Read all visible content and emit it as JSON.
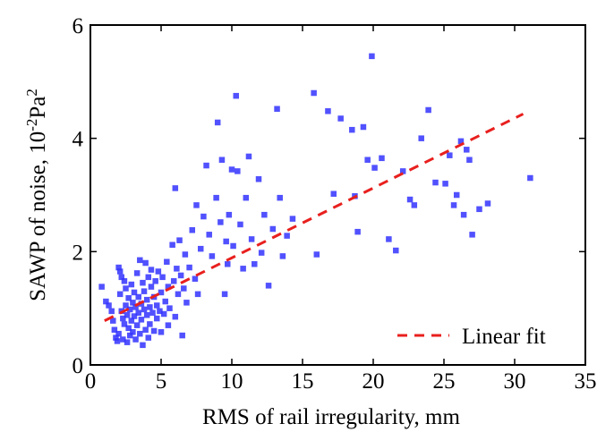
{
  "chart_data": {
    "type": "scatter",
    "xlabel": "RMS of rail irregularity, mm",
    "ylabel": {
      "main": "SAWP of noise, 10",
      "sup1": "-2",
      "mid": "Pa",
      "sup2": "2"
    },
    "xlim": [
      0,
      35
    ],
    "ylim": [
      0,
      6
    ],
    "xticks": [
      0,
      5,
      10,
      15,
      20,
      25,
      30,
      35
    ],
    "yticks": [
      0,
      2,
      4,
      6
    ],
    "xtick_labels": [
      "0",
      "5",
      "10",
      "15",
      "20",
      "25",
      "30",
      "35"
    ],
    "ytick_labels": [
      "0",
      "2",
      "4",
      "6"
    ],
    "legend_position": "bottom-right",
    "grid": false,
    "series": [
      {
        "kind": "scatter",
        "color": "#3333ff",
        "marker": "square",
        "points": [
          [
            0.8,
            1.38
          ],
          [
            1.1,
            1.12
          ],
          [
            1.3,
            1.05
          ],
          [
            1.5,
            0.95
          ],
          [
            1.6,
            0.78
          ],
          [
            1.7,
            0.62
          ],
          [
            1.8,
            0.48
          ],
          [
            1.9,
            0.42
          ],
          [
            2.0,
            0.55
          ],
          [
            2.0,
            1.72
          ],
          [
            2.1,
            1.65
          ],
          [
            2.1,
            1.25
          ],
          [
            2.2,
            1.55
          ],
          [
            2.2,
            0.95
          ],
          [
            2.3,
            0.82
          ],
          [
            2.3,
            0.45
          ],
          [
            2.4,
            1.48
          ],
          [
            2.4,
            0.72
          ],
          [
            2.5,
            1.35
          ],
          [
            2.5,
            1.05
          ],
          [
            2.6,
            0.88
          ],
          [
            2.6,
            0.4
          ],
          [
            2.7,
            1.18
          ],
          [
            2.7,
            0.65
          ],
          [
            2.8,
            0.98
          ],
          [
            2.8,
            0.52
          ],
          [
            2.9,
            1.42
          ],
          [
            2.9,
            0.78
          ],
          [
            3.0,
            0.58
          ],
          [
            3.0,
            1.1
          ],
          [
            3.1,
            1.28
          ],
          [
            3.1,
            0.86
          ],
          [
            3.2,
            1.02
          ],
          [
            3.2,
            0.45
          ],
          [
            3.3,
            1.62
          ],
          [
            3.3,
            0.7
          ],
          [
            3.4,
            0.92
          ],
          [
            3.4,
            1.2
          ],
          [
            3.5,
            1.85
          ],
          [
            3.5,
            0.55
          ],
          [
            3.6,
            1.08
          ],
          [
            3.6,
            0.8
          ],
          [
            3.7,
            1.45
          ],
          [
            3.7,
            0.35
          ],
          [
            3.8,
            0.98
          ],
          [
            3.8,
            1.3
          ],
          [
            3.9,
            1.8
          ],
          [
            3.9,
            0.62
          ],
          [
            4.0,
            1.15
          ],
          [
            4.0,
            0.88
          ],
          [
            4.1,
            1.55
          ],
          [
            4.1,
            0.48
          ],
          [
            4.2,
            1.02
          ],
          [
            4.2,
            0.72
          ],
          [
            4.3,
            1.38
          ],
          [
            4.3,
            1.68
          ],
          [
            4.4,
            0.92
          ],
          [
            4.5,
            1.2
          ],
          [
            4.5,
            0.6
          ],
          [
            4.6,
            1.48
          ],
          [
            4.7,
            0.82
          ],
          [
            4.7,
            1.05
          ],
          [
            4.8,
            1.65
          ],
          [
            4.9,
            0.95
          ],
          [
            5.0,
            1.28
          ],
          [
            5.0,
            0.58
          ],
          [
            5.1,
            1.55
          ],
          [
            5.2,
            0.9
          ],
          [
            5.3,
            1.12
          ],
          [
            5.4,
            1.82
          ],
          [
            5.5,
            1.38
          ],
          [
            5.5,
            0.7
          ],
          [
            5.6,
            1.0
          ],
          [
            5.8,
            2.12
          ],
          [
            5.9,
            1.48
          ],
          [
            6.0,
            0.85
          ],
          [
            6.0,
            3.12
          ],
          [
            6.1,
            1.7
          ],
          [
            6.2,
            1.25
          ],
          [
            6.3,
            2.2
          ],
          [
            6.4,
            1.58
          ],
          [
            6.5,
            0.52
          ],
          [
            6.6,
            1.35
          ],
          [
            6.7,
            1.95
          ],
          [
            6.8,
            1.1
          ],
          [
            7.0,
            1.72
          ],
          [
            7.2,
            2.38
          ],
          [
            7.4,
            1.52
          ],
          [
            7.5,
            2.82
          ],
          [
            7.6,
            1.25
          ],
          [
            7.8,
            2.05
          ],
          [
            8.0,
            2.62
          ],
          [
            8.2,
            3.52
          ],
          [
            8.4,
            2.3
          ],
          [
            8.6,
            1.92
          ],
          [
            8.9,
            2.95
          ],
          [
            9.0,
            4.28
          ],
          [
            9.2,
            2.52
          ],
          [
            9.3,
            3.62
          ],
          [
            9.5,
            1.25
          ],
          [
            9.6,
            2.18
          ],
          [
            9.7,
            1.78
          ],
          [
            9.8,
            2.65
          ],
          [
            10.0,
            3.45
          ],
          [
            10.1,
            2.1
          ],
          [
            10.3,
            4.75
          ],
          [
            10.4,
            3.42
          ],
          [
            10.6,
            2.48
          ],
          [
            10.8,
            1.7
          ],
          [
            11.0,
            2.95
          ],
          [
            11.2,
            3.68
          ],
          [
            11.4,
            2.22
          ],
          [
            11.6,
            1.78
          ],
          [
            11.9,
            3.28
          ],
          [
            12.1,
            1.98
          ],
          [
            12.3,
            2.65
          ],
          [
            12.6,
            1.4
          ],
          [
            12.9,
            2.4
          ],
          [
            13.2,
            4.52
          ],
          [
            13.4,
            2.95
          ],
          [
            13.6,
            1.92
          ],
          [
            13.9,
            2.28
          ],
          [
            14.3,
            2.58
          ],
          [
            15.8,
            4.8
          ],
          [
            16.0,
            1.95
          ],
          [
            16.8,
            4.48
          ],
          [
            17.2,
            3.02
          ],
          [
            17.7,
            4.35
          ],
          [
            18.5,
            4.15
          ],
          [
            18.7,
            2.98
          ],
          [
            18.9,
            2.35
          ],
          [
            19.3,
            4.2
          ],
          [
            19.6,
            3.62
          ],
          [
            19.9,
            5.45
          ],
          [
            20.1,
            3.48
          ],
          [
            20.6,
            3.65
          ],
          [
            21.1,
            2.22
          ],
          [
            21.6,
            2.02
          ],
          [
            22.1,
            3.42
          ],
          [
            22.6,
            2.92
          ],
          [
            22.9,
            2.82
          ],
          [
            23.4,
            4.0
          ],
          [
            23.9,
            4.5
          ],
          [
            24.4,
            3.22
          ],
          [
            25.1,
            3.2
          ],
          [
            25.4,
            3.7
          ],
          [
            25.7,
            2.82
          ],
          [
            25.9,
            3.0
          ],
          [
            26.2,
            3.95
          ],
          [
            26.4,
            2.65
          ],
          [
            26.6,
            3.8
          ],
          [
            26.8,
            3.62
          ],
          [
            27.0,
            2.3
          ],
          [
            27.5,
            2.75
          ],
          [
            28.1,
            2.85
          ],
          [
            31.1,
            3.3
          ]
        ]
      },
      {
        "kind": "line",
        "name": "Linear fit",
        "color": "#e8201e",
        "dash": "dashed",
        "x": [
          1.0,
          30.6
        ],
        "y": [
          0.78,
          4.43
        ]
      }
    ]
  }
}
